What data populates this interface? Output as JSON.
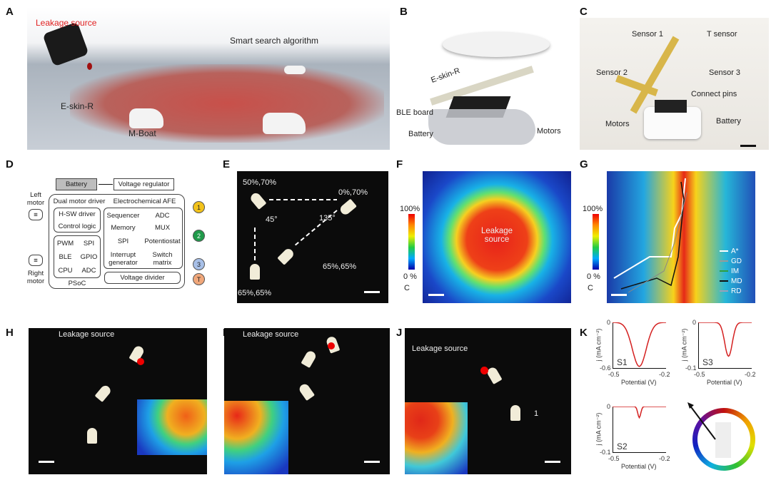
{
  "panels": {
    "A": "A",
    "B": "B",
    "C": "C",
    "D": "D",
    "E": "E",
    "F": "F",
    "G": "G",
    "H": "H",
    "I": "I",
    "J": "J",
    "K": "K"
  },
  "a": {
    "leakage": "Leakage source",
    "algorithm": "Smart search algorithm",
    "eskin": "E-skin-R",
    "mboat": "M-Boat",
    "leak_color": "#e02020"
  },
  "b": {
    "eskin": "E-skin-R",
    "ble": "BLE board",
    "battery": "Battery",
    "motors": "Motors"
  },
  "c": {
    "s1": "Sensor 1",
    "t": "T sensor",
    "s2": "Sensor 2",
    "s3": "Sensor 3",
    "pins": "Connect pins",
    "motors": "Motors",
    "battery": "Battery"
  },
  "d": {
    "battery": "Battery",
    "regulator": "Voltage regulator",
    "left_motor": "Left motor",
    "right_motor": "Right motor",
    "dual": "Dual motor driver",
    "afe": "Electrochemical AFE",
    "hsw": "H-SW driver",
    "control": "Control logic",
    "pwm": "PWM",
    "spi": "SPI",
    "ble": "BLE",
    "gpio": "GPIO",
    "cpu": "CPU",
    "adc": "ADC",
    "psoc": "PSoC",
    "sequencer": "Sequencer",
    "adc2": "ADC",
    "memory": "Memory",
    "mux": "MUX",
    "spi2": "SPI",
    "potentiostat": "Potentiostat",
    "interrupt": "Interrupt generator",
    "switch": "Switch matrix",
    "divider": "Voltage divider",
    "c1": "1",
    "c2": "2",
    "c3": "3",
    "cT": "T"
  },
  "e": {
    "p1": "50%,70%",
    "p2": "0%,70%",
    "p3": "65%,65%",
    "p4": "65%,65%",
    "a1": "45°",
    "a2": "135°"
  },
  "f": {
    "max": "100%",
    "min": "0 %",
    "unit": "C",
    "center": "Leakage source"
  },
  "g": {
    "max": "100%",
    "min": "0 %",
    "unit": "C",
    "legend": [
      {
        "name": "A*",
        "color": "#ffffff"
      },
      {
        "name": "GD",
        "color": "#999999"
      },
      {
        "name": "IM",
        "color": "#2e9e3e"
      },
      {
        "name": "MD",
        "color": "#111111"
      },
      {
        "name": "RD",
        "color": "#9aa0b8"
      }
    ]
  },
  "h": {
    "leak": "Leakage source"
  },
  "i": {
    "leak": "Leakage source"
  },
  "j": {
    "leak": "Leakage source",
    "num": "1"
  },
  "k": {
    "xlabel": "Potential (V)",
    "ylabel": "j (mA cm⁻²)",
    "plots": [
      {
        "name": "S1",
        "xlim": [
          -0.5,
          -0.2
        ],
        "ylim": [
          -0.6,
          0
        ],
        "xticks": [
          "-0.5",
          "-0.2"
        ],
        "yticks": [
          "0",
          "-0.6"
        ],
        "peak_x": -0.35,
        "peak_y": -0.57
      },
      {
        "name": "S3",
        "xlim": [
          -0.5,
          -0.2
        ],
        "ylim": [
          -0.1,
          0
        ],
        "xticks": [
          "-0.5",
          "-0.2"
        ],
        "yticks": [
          "0",
          "-0.1"
        ],
        "peak_x": -0.33,
        "peak_y": -0.073
      },
      {
        "name": "S2",
        "xlim": [
          -0.5,
          -0.2
        ],
        "ylim": [
          -0.1,
          0
        ],
        "xticks": [
          "-0.5",
          "-0.2"
        ],
        "yticks": [
          "0",
          "-0.1"
        ],
        "peak_x": -0.35,
        "peak_y": -0.024
      }
    ]
  }
}
